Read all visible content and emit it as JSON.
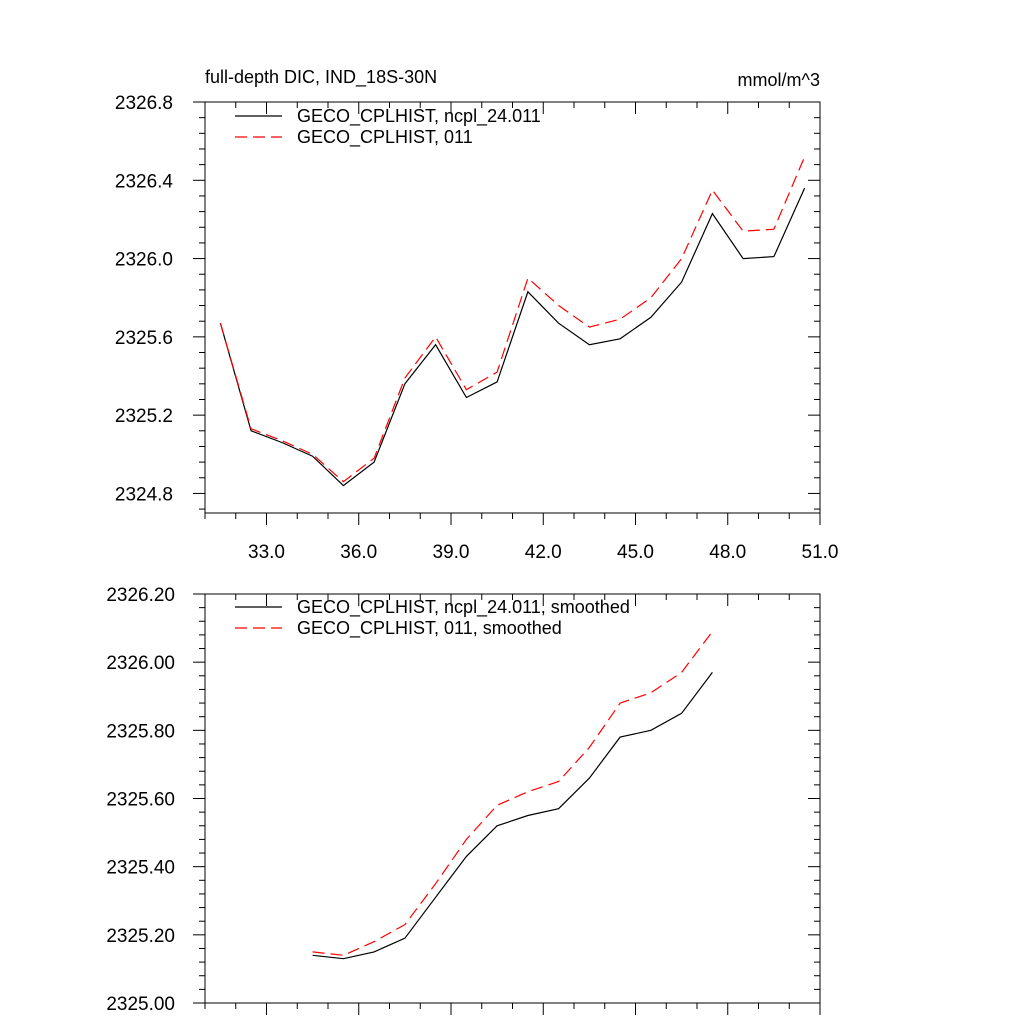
{
  "chart_data": [
    {
      "type": "line",
      "title": "full-depth DIC, IND_18S-30N",
      "units": "mmol/m^3",
      "xlabel": "",
      "ylabel": "",
      "xlim": [
        31,
        51
      ],
      "ylim": [
        2324.7,
        2326.8
      ],
      "xticks": [
        33,
        36,
        39,
        42,
        45,
        48,
        51
      ],
      "xtick_labels": [
        "33.0",
        "36.0",
        "39.0",
        "42.0",
        "45.0",
        "48.0",
        "51.0"
      ],
      "yticks": [
        2324.8,
        2325.2,
        2325.6,
        2326.0,
        2326.4,
        2326.8
      ],
      "ytick_labels": [
        "2324.8",
        "2325.2",
        "2325.6",
        "2326.0",
        "2326.4",
        "2326.8"
      ],
      "legend_position": "top-left",
      "x": [
        31.5,
        32.5,
        33.5,
        34.5,
        35.5,
        36.5,
        37.5,
        38.5,
        39.5,
        40.5,
        41.5,
        42.5,
        43.5,
        44.5,
        45.5,
        46.5,
        47.5,
        48.5,
        49.5,
        50.5
      ],
      "series": [
        {
          "name": "GECO_CPLHIST, ncpl_24.011",
          "color": "#000000",
          "dash": "solid",
          "values": [
            2325.67,
            2325.12,
            2325.06,
            2324.99,
            2324.84,
            2324.96,
            2325.36,
            2325.56,
            2325.29,
            2325.37,
            2325.83,
            2325.67,
            2325.56,
            2325.59,
            2325.7,
            2325.88,
            2326.23,
            2326.0,
            2326.01,
            2326.36
          ]
        },
        {
          "name": "GECO_CPLHIST, 011",
          "color": "#ff0000",
          "dash": "dashed",
          "values": [
            2325.67,
            2325.13,
            2325.07,
            2325.0,
            2324.86,
            2324.98,
            2325.39,
            2325.6,
            2325.33,
            2325.42,
            2325.9,
            2325.76,
            2325.65,
            2325.69,
            2325.8,
            2326.0,
            2326.35,
            2326.14,
            2326.15,
            2326.52
          ]
        }
      ]
    },
    {
      "type": "line",
      "title": "",
      "xlabel": "",
      "ylabel": "",
      "xlim": [
        31,
        51
      ],
      "ylim": [
        2325.0,
        2326.2
      ],
      "xticks": [
        33,
        36,
        39,
        42,
        45,
        48,
        51
      ],
      "yticks": [
        2325.0,
        2325.2,
        2325.4,
        2325.6,
        2325.8,
        2326.0,
        2326.2
      ],
      "ytick_labels": [
        "2325.00",
        "2325.20",
        "2325.40",
        "2325.60",
        "2325.80",
        "2326.00",
        "2326.20"
      ],
      "legend_position": "top-left",
      "x": [
        34.5,
        35.5,
        36.5,
        37.5,
        38.5,
        39.5,
        40.5,
        41.5,
        42.5,
        43.5,
        44.5,
        45.5,
        46.5,
        47.5
      ],
      "series": [
        {
          "name": "GECO_CPLHIST, ncpl_24.011, smoothed",
          "color": "#000000",
          "dash": "solid",
          "values": [
            2325.14,
            2325.13,
            2325.15,
            2325.19,
            2325.31,
            2325.43,
            2325.52,
            2325.55,
            2325.57,
            2325.66,
            2325.78,
            2325.8,
            2325.85,
            2325.97
          ]
        },
        {
          "name": "GECO_CPLHIST, 011, smoothed",
          "color": "#ff0000",
          "dash": "dashed",
          "values": [
            2325.15,
            2325.14,
            2325.18,
            2325.23,
            2325.35,
            2325.48,
            2325.58,
            2325.62,
            2325.65,
            2325.75,
            2325.88,
            2325.91,
            2325.97,
            2326.09
          ]
        }
      ]
    }
  ]
}
